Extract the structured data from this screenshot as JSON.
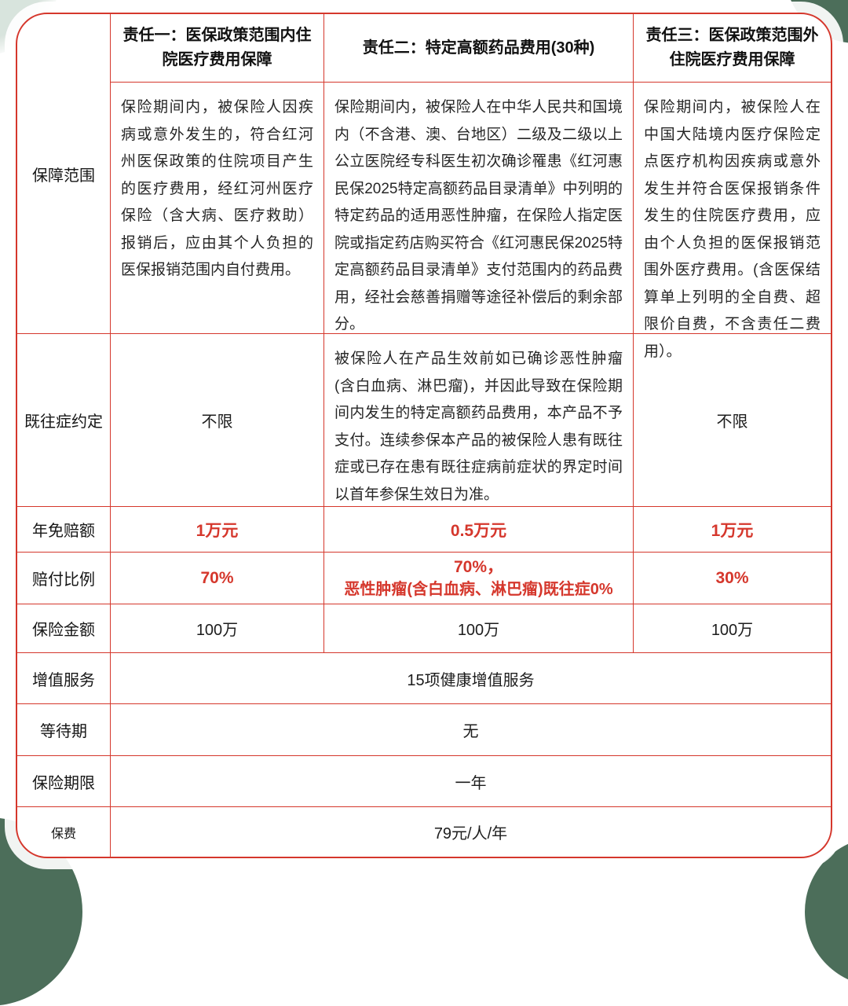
{
  "theme": {
    "border_red": "#d5372c",
    "value_red": "#d5372c",
    "text_dark": "#262626",
    "corner_green": "#4c6e5a"
  },
  "table": {
    "headers": {
      "h1": "责任一：医保政策范围内住院医疗费用保障",
      "h2": "责任二：特定高额药品费用(30种)",
      "h3": "责任三：医保政策范围外住院医疗费用保障"
    },
    "coverage": {
      "label": "保障范围",
      "c1": "保险期间内，被保险人因疾病或意外发生的，符合红河州医保政策的住院项目产生的医疗费用，经红河州医疗保险（含大病、医疗救助）报销后，应由其个人负担的医保报销范围内自付费用。",
      "c2": "保险期间内，被保险人在中华人民共和国境内（不含港、澳、台地区）二级及二级以上公立医院经专科医生初次确诊罹患《红河惠民保2025特定高额药品目录清单》中列明的特定药品的适用恶性肿瘤，在保险人指定医院或指定药店购买符合《红河惠民保2025特定高额药品目录清单》支付范围内的药品费用，经社会慈善捐赠等途径补偿后的剩余部分。",
      "c3": "保险期间内，被保险人在中国大陆境内医疗保险定点医疗机构因疾病或意外发生并符合医保报销条件发生的住院医疗费用，应由个人负担的医保报销范围外医疗费用。(含医保结算单上列明的全自费、超限价自费，不含责任二费用）。"
    },
    "preexisting": {
      "label": "既往症约定",
      "c1": "不限",
      "c2": "被保险人在产品生效前如已确诊恶性肿瘤(含白血病、淋巴瘤)，并因此导致在保险期间内发生的特定高额药品费用，本产品不予支付。连续参保本产品的被保险人患有既往症或已存在患有既往症病前症状的界定时间以首年参保生效日为准。",
      "c3": "不限"
    },
    "deductible": {
      "label": "年免赔额",
      "c1": "1万元",
      "c2": "0.5万元",
      "c3": "1万元"
    },
    "payout": {
      "label": "赔付比例",
      "c1": "70%",
      "c2_line1": "70%，",
      "c2_line2": "恶性肿瘤(含白血病、淋巴瘤)既往症0%",
      "c3": "30%"
    },
    "amount": {
      "label": "保险金额",
      "c1": "100万",
      "c2": "100万",
      "c3": "100万"
    },
    "services": {
      "label": "增值服务",
      "value": "15项健康增值服务"
    },
    "waiting": {
      "label": "等待期",
      "value": "无"
    },
    "term": {
      "label": "保险期限",
      "value": "一年"
    },
    "premium": {
      "label": "保费",
      "value": "79元/人/年"
    }
  }
}
